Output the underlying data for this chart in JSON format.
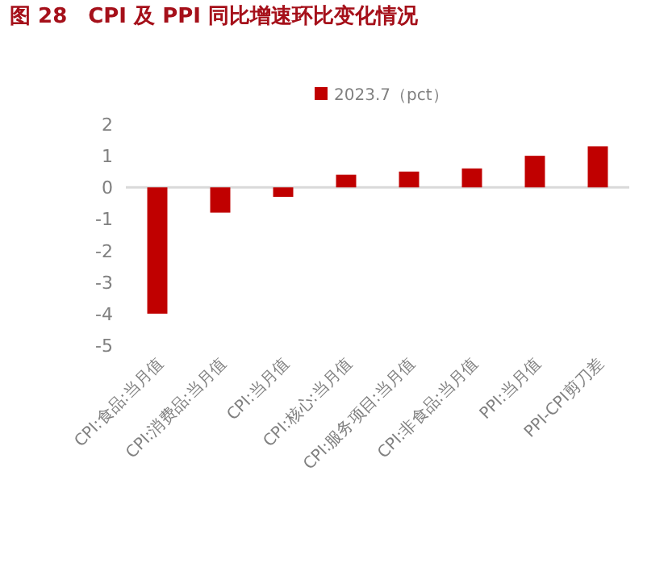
{
  "chart_data": {
    "type": "bar",
    "title": "图 28　CPI 及 PPI 同比增速环比变化情况",
    "categories": [
      "CPI:食品:当月值",
      "CPI:消费品:当月值",
      "CPI:当月值",
      "CPI:核心:当月值",
      "CPI:服务项目:当月值",
      "CPI:非食品:当月值",
      "PPI:当月值",
      "PPI-CPI剪刀差"
    ],
    "series": [
      {
        "name": "2023.7（pct）",
        "color": "#c00000",
        "values": [
          -4.0,
          -0.8,
          -0.3,
          0.4,
          0.5,
          0.6,
          1.0,
          1.3
        ]
      }
    ],
    "ylim": [
      -5,
      2
    ],
    "yticks": [
      -5,
      -4,
      -3,
      -2,
      -1,
      0,
      1,
      2
    ],
    "legend": "top"
  }
}
